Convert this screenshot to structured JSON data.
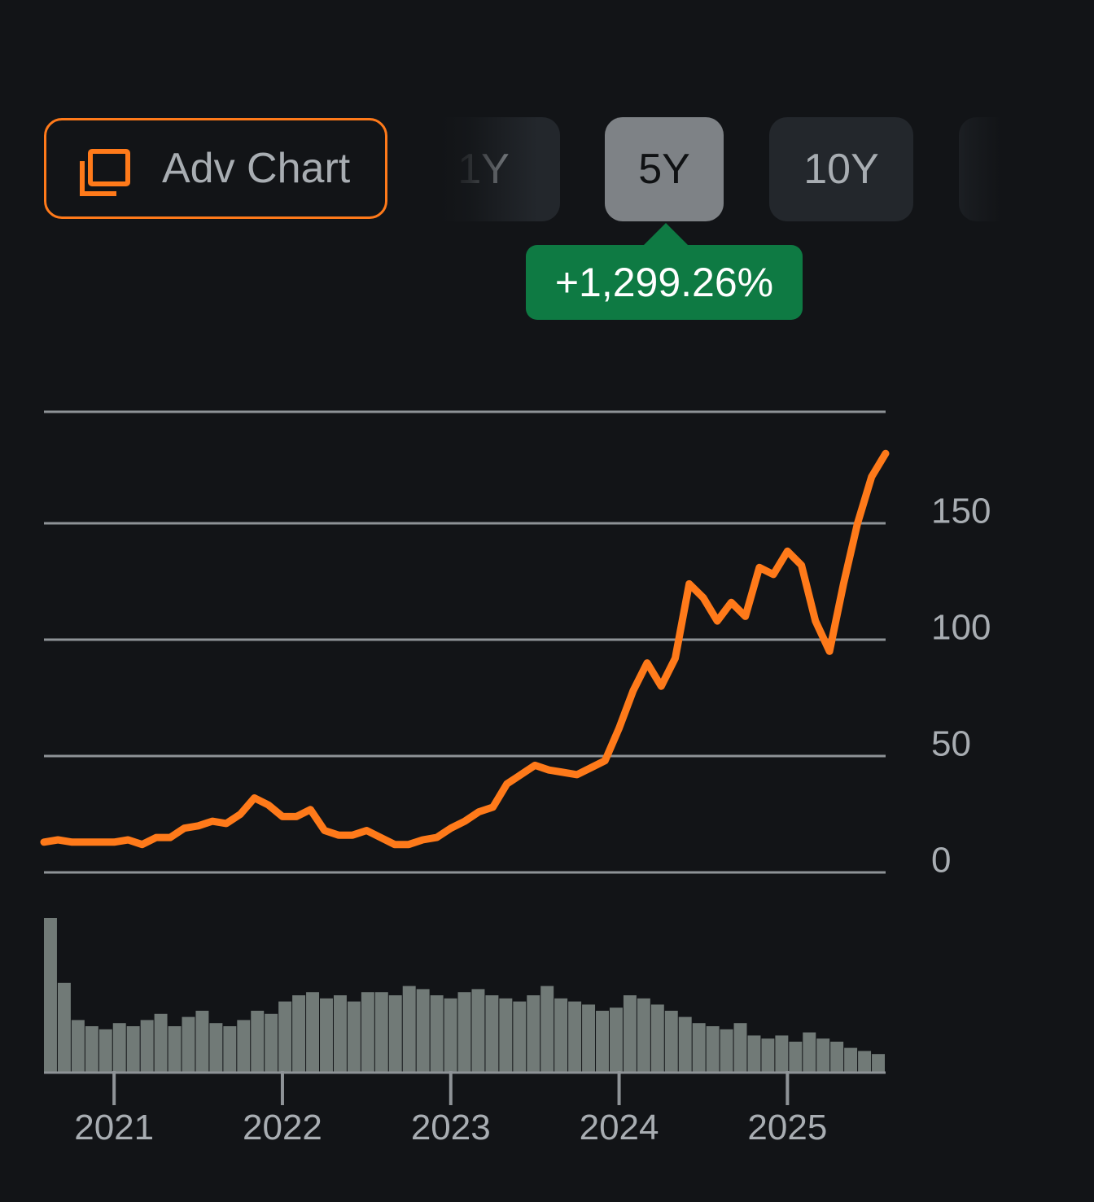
{
  "adv_chart": {
    "label": "Adv Chart",
    "icon": "chart-window-icon"
  },
  "ranges": [
    {
      "label": "1Y",
      "active": false
    },
    {
      "label": "5Y",
      "active": true
    },
    {
      "label": "10Y",
      "active": false
    }
  ],
  "change_badge": {
    "text": "+1,299.26%",
    "color": "#0e7a43"
  },
  "colors": {
    "line": "#ff7a1a",
    "grid": "#8e9397",
    "volume": "#7c8582",
    "background": "#121417",
    "text": "#a8adb2"
  },
  "chart_data": {
    "type": "line",
    "y_ticks": [
      0,
      50,
      100,
      150
    ],
    "ylim": [
      0,
      190
    ],
    "x_ticks": [
      "2021",
      "2022",
      "2023",
      "2024",
      "2025"
    ],
    "xlim": [
      "2020-08",
      "2025-08"
    ],
    "series": [
      {
        "x": [
          "2020-08",
          "2020-09",
          "2020-10",
          "2020-11",
          "2020-12",
          "2021-01",
          "2021-02",
          "2021-03",
          "2021-04",
          "2021-05",
          "2021-06",
          "2021-07",
          "2021-08",
          "2021-09",
          "2021-10",
          "2021-11",
          "2021-12",
          "2022-01",
          "2022-02",
          "2022-03",
          "2022-04",
          "2022-05",
          "2022-06",
          "2022-07",
          "2022-08",
          "2022-09",
          "2022-10",
          "2022-11",
          "2022-12",
          "2023-01",
          "2023-02",
          "2023-03",
          "2023-04",
          "2023-05",
          "2023-06",
          "2023-07",
          "2023-08",
          "2023-09",
          "2023-10",
          "2023-11",
          "2023-12",
          "2024-01",
          "2024-02",
          "2024-03",
          "2024-04",
          "2024-05",
          "2024-06",
          "2024-07",
          "2024-08",
          "2024-09",
          "2024-10",
          "2024-11",
          "2024-12",
          "2025-01",
          "2025-02",
          "2025-03",
          "2025-04",
          "2025-05",
          "2025-06",
          "2025-07",
          "2025-08"
        ],
        "values": [
          13,
          14,
          13,
          13,
          13,
          13,
          14,
          12,
          15,
          15,
          19,
          20,
          22,
          21,
          25,
          32,
          29,
          24,
          24,
          27,
          18,
          16,
          16,
          18,
          15,
          12,
          12,
          14,
          15,
          19,
          22,
          26,
          28,
          38,
          42,
          46,
          44,
          43,
          42,
          45,
          48,
          62,
          78,
          90,
          80,
          92,
          124,
          118,
          108,
          116,
          110,
          131,
          128,
          138,
          132,
          108,
          95,
          124,
          150,
          170,
          180
        ]
      }
    ],
    "volume": {
      "values": [
        1.0,
        0.58,
        0.34,
        0.3,
        0.28,
        0.32,
        0.3,
        0.34,
        0.38,
        0.3,
        0.36,
        0.4,
        0.32,
        0.3,
        0.34,
        0.4,
        0.38,
        0.46,
        0.5,
        0.52,
        0.48,
        0.5,
        0.46,
        0.52,
        0.52,
        0.5,
        0.56,
        0.54,
        0.5,
        0.48,
        0.52,
        0.54,
        0.5,
        0.48,
        0.46,
        0.5,
        0.56,
        0.48,
        0.46,
        0.44,
        0.4,
        0.42,
        0.5,
        0.48,
        0.44,
        0.4,
        0.36,
        0.32,
        0.3,
        0.28,
        0.32,
        0.24,
        0.22,
        0.24,
        0.2,
        0.26,
        0.22,
        0.2,
        0.16,
        0.14,
        0.12
      ],
      "ylim": [
        0,
        1
      ]
    }
  }
}
